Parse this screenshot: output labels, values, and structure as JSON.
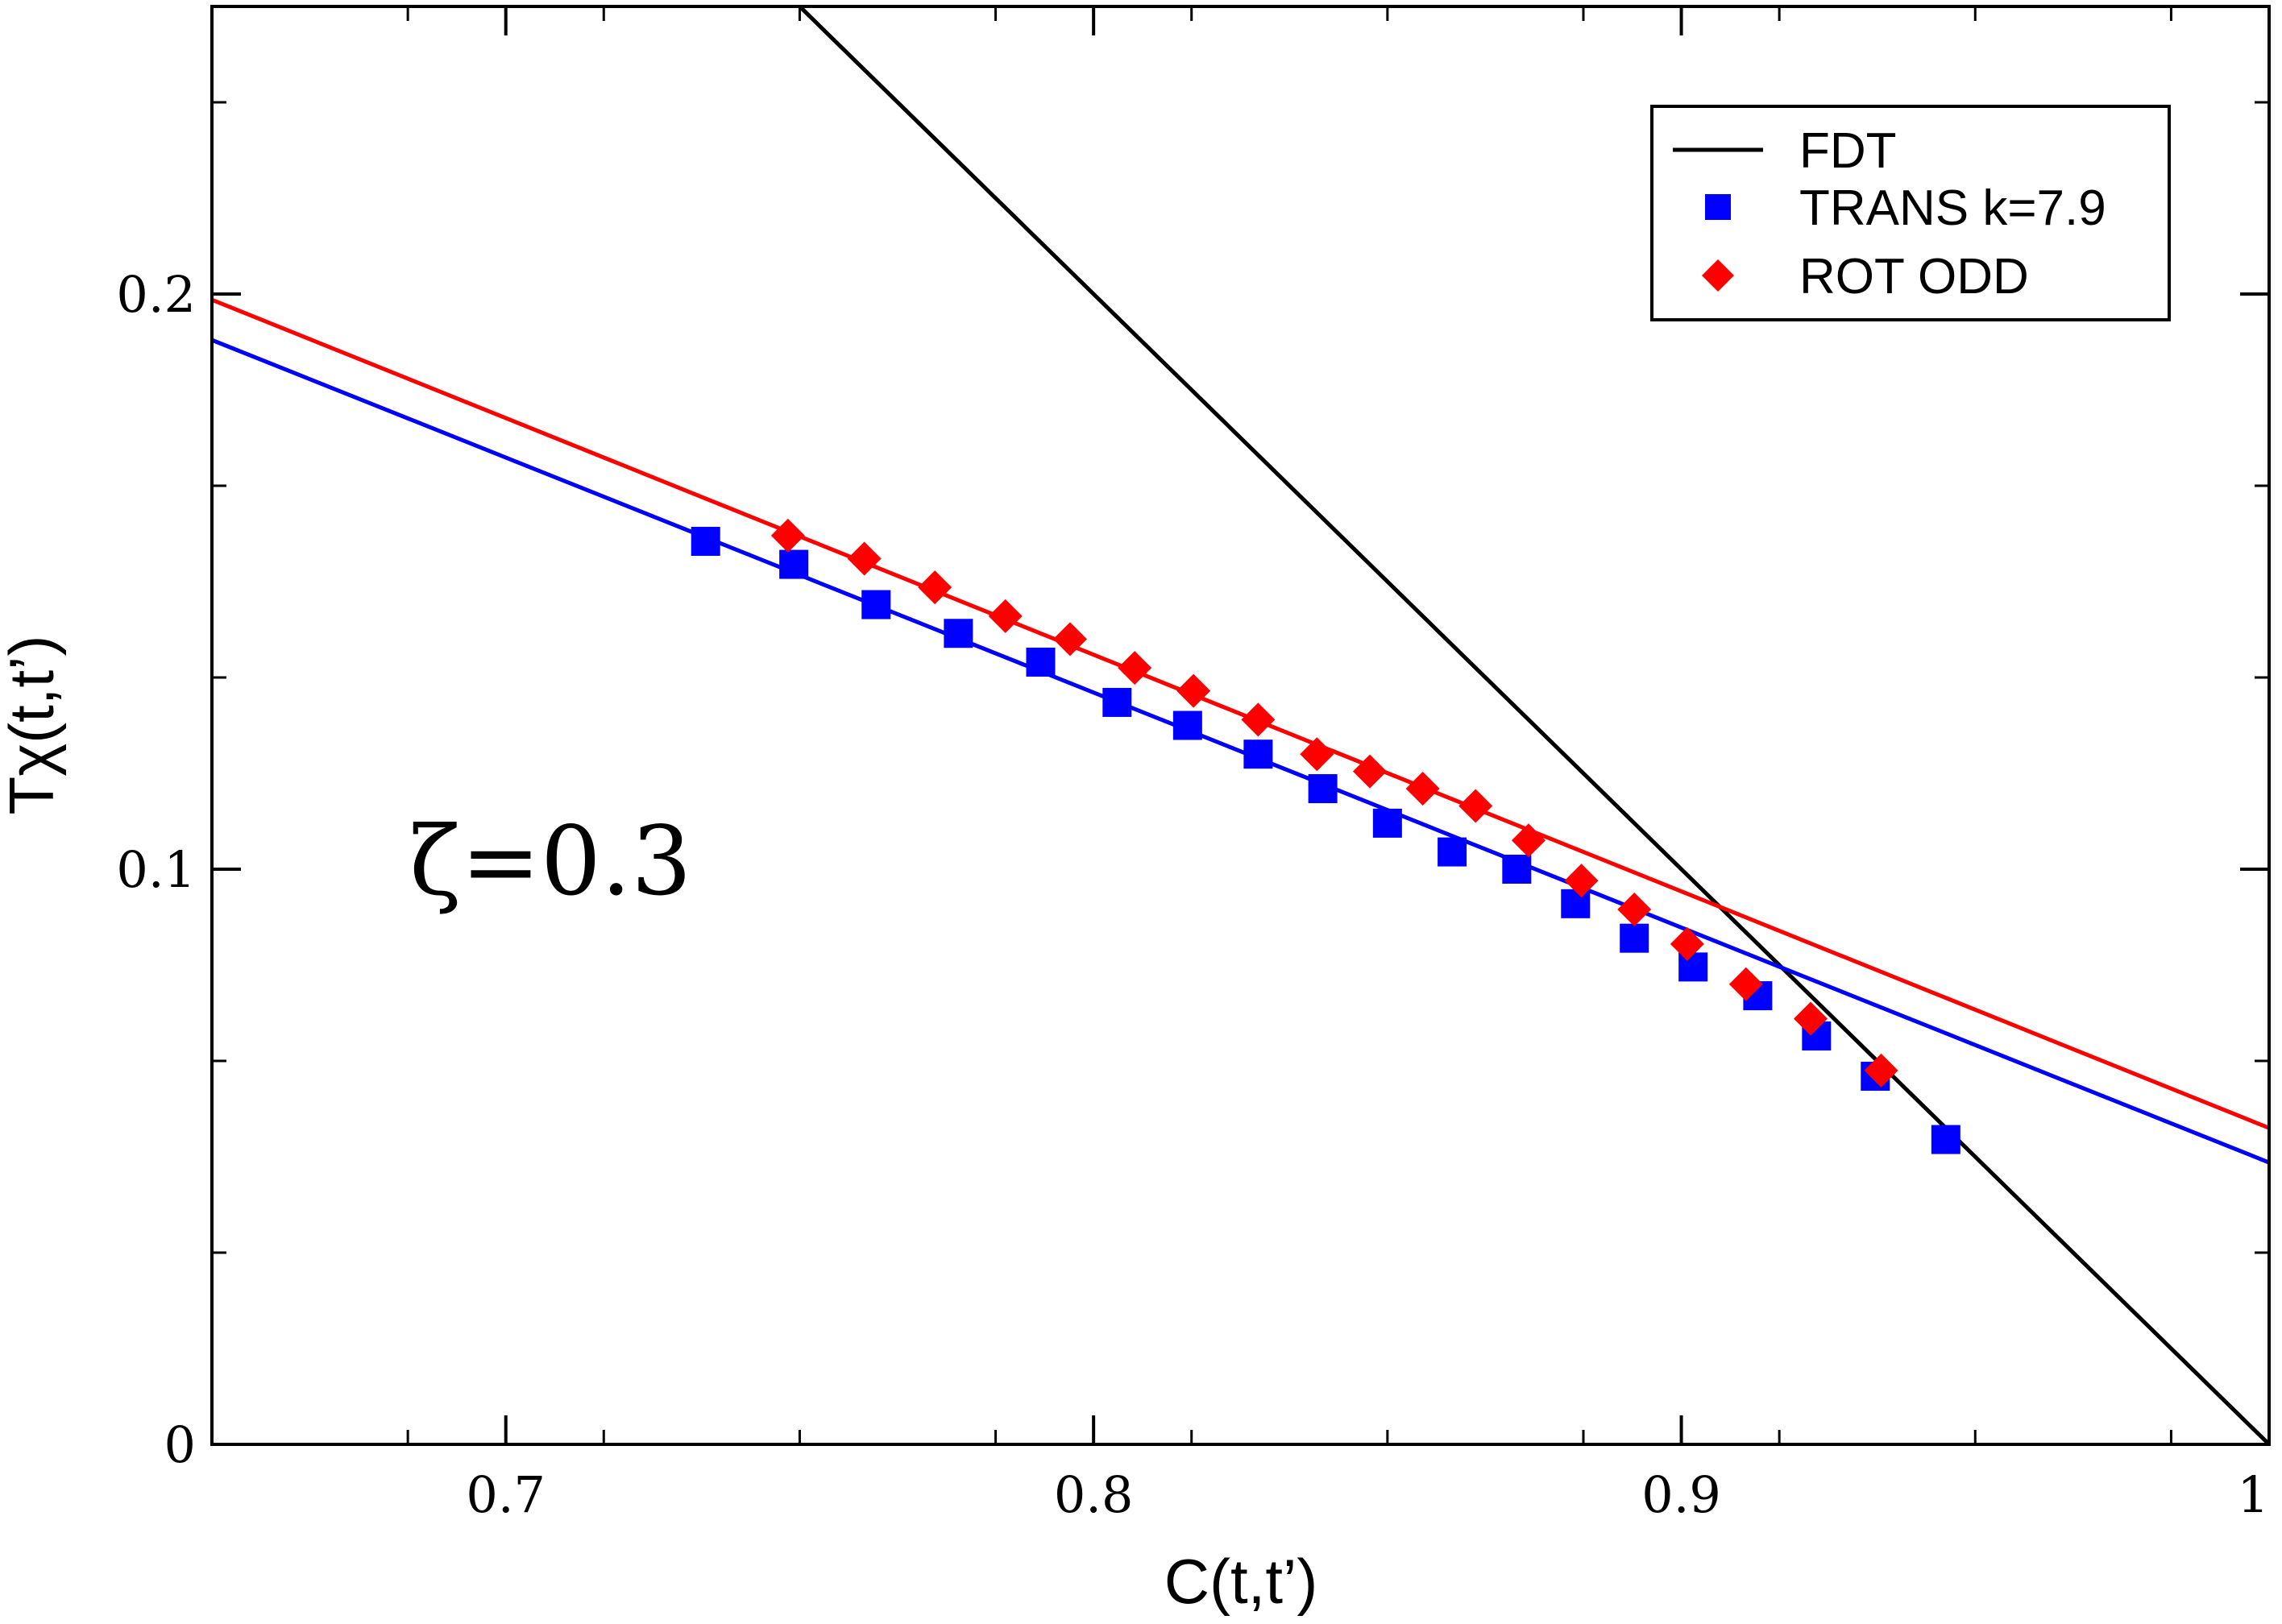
{
  "chart_data": {
    "type": "scatter",
    "title": "",
    "xlabel": "C(t,t’)",
    "ylabel": "Tχ(t,t’)",
    "xlim": [
      0.65,
      1.0
    ],
    "ylim": [
      0.0,
      0.25
    ],
    "x_ticks": [
      {
        "value": 0.7,
        "label": "0.7"
      },
      {
        "value": 0.8,
        "label": "0.8"
      },
      {
        "value": 0.9,
        "label": "0.9"
      },
      {
        "value": 1.0,
        "label": "1"
      }
    ],
    "y_ticks": [
      {
        "value": 0.0,
        "label": "0"
      },
      {
        "value": 0.1,
        "label": "0.1"
      },
      {
        "value": 0.2,
        "label": "0.2"
      }
    ],
    "x_minor_step": 0.0333333,
    "y_minor_step": 0.0333333,
    "annotation": "ζ=0.3",
    "legend_position": "top-right",
    "series": [
      {
        "name": "FDT",
        "kind": "line",
        "color": "#000000",
        "x": [
          0.75,
          1.0
        ],
        "y": [
          0.25,
          0.0
        ]
      },
      {
        "name": "TRANS k=7.9",
        "kind": "markers",
        "marker": "square",
        "color": "#0000ff",
        "x": [
          0.734,
          0.749,
          0.763,
          0.777,
          0.791,
          0.804,
          0.816,
          0.828,
          0.839,
          0.85,
          0.861,
          0.872,
          0.882,
          0.892,
          0.902,
          0.913,
          0.923,
          0.933,
          0.945
        ],
        "y": [
          0.157,
          0.153,
          0.146,
          0.141,
          0.136,
          0.129,
          0.125,
          0.12,
          0.114,
          0.108,
          0.103,
          0.1,
          0.094,
          0.088,
          0.083,
          0.078,
          0.071,
          0.064,
          0.053
        ]
      },
      {
        "name": "ROT ODD",
        "kind": "markers",
        "marker": "diamond",
        "color": "#ff0000",
        "x": [
          0.748,
          0.761,
          0.773,
          0.785,
          0.796,
          0.807,
          0.817,
          0.828,
          0.838,
          0.847,
          0.856,
          0.865,
          0.874,
          0.883,
          0.892,
          0.901,
          0.911,
          0.922,
          0.934
        ],
        "y": [
          0.158,
          0.154,
          0.149,
          0.144,
          0.14,
          0.135,
          0.131,
          0.126,
          0.12,
          0.117,
          0.114,
          0.111,
          0.105,
          0.098,
          0.093,
          0.087,
          0.08,
          0.074,
          0.065
        ]
      },
      {
        "name": "TRANS fit",
        "kind": "line",
        "legend": false,
        "color": "#0000ff",
        "x": [
          0.65,
          1.0
        ],
        "y": [
          0.192,
          0.049
        ]
      },
      {
        "name": "ROT fit",
        "kind": "line",
        "legend": false,
        "color": "#ff0000",
        "x": [
          0.65,
          1.0
        ],
        "y": [
          0.199,
          0.055
        ]
      }
    ]
  }
}
